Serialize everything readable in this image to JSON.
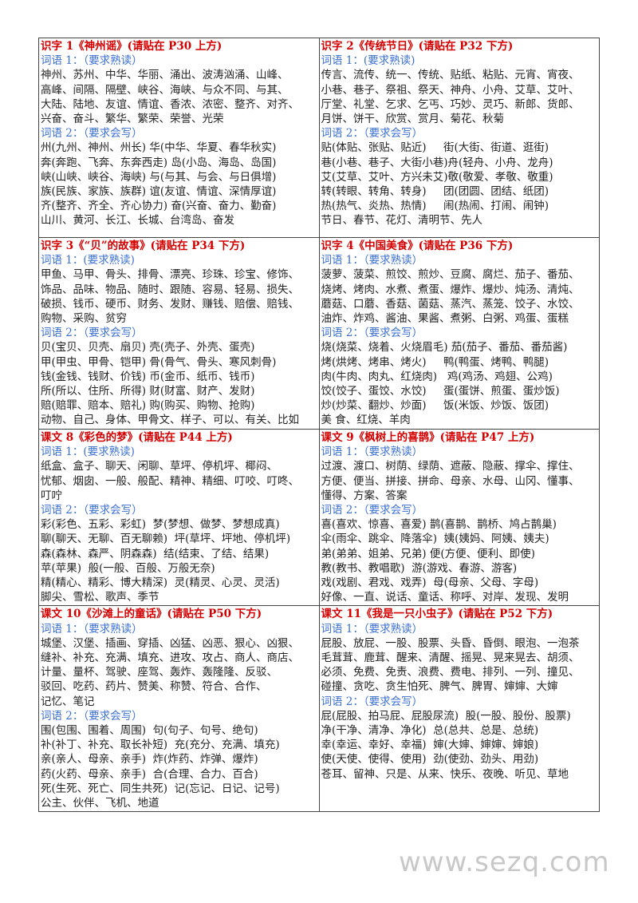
{
  "cells": [
    {
      "title": "识字 1《神州谣》(请贴在 P30 上方)",
      "vocab1_label": "词语 1：（要求熟读）",
      "vocab1_lines": [
        "神州、苏州、中华、华丽、涌出、波涛汹涌、山峰、",
        "高峰、间隔、隔壁、峡谷、海峡、与众不同、与其、",
        "大陆、陆地、友谊、情谊、香浓、浓密、整齐、对齐、",
        "兴奋、奋斗、繁华、繁荣、荣誉、光荣"
      ],
      "vocab2_label": "词语 2：（要求会写）",
      "vocab2_lines": [
        "州(九州、神州、州长) 华(中华、华夏、春华秋实)",
        "奔(奔跑、飞奔、东奔西走) 岛(小岛、海岛、岛国)",
        "峡(山峡、峡谷、海峡) 与(与其、与会、与日俱增)",
        "族(民族、家族、族群) 谊(友谊、情谊、深情厚谊)",
        "齐(整齐、齐全、齐心协力) 奋(兴奋、奋力、勤奋)",
        "山川、黄河、长江、长城、台湾岛、奋发"
      ]
    },
    {
      "title": "识字 2《传统节日》(请贴在 P32 下方)",
      "vocab1_label": "词语 1：(要求熟读)",
      "vocab1_lines": [
        "传言、流传、统一、传统、贴纸、粘贴、元宵、宵夜、",
        "小巷、巷子、祭祖、祭天、神舟、小舟、艾草、艾叶、",
        "厅堂、礼堂、乞求、乞丐、巧妙、灵巧、新郎、货郎、",
        "月饼、饼干、欣赏、赏月、菊花、秋菊"
      ],
      "vocab2_label": "词语 2：（要求会写）",
      "vocab2_lines": [
        "贴(体贴、张贴、贴近)     街(大街、街道、逛街)",
        "巷(小巷、巷子、大街小巷)舟(轻舟、小舟、龙舟)",
        "艾(艾草、艾叶、方兴未艾)敬(敬爱、孝敬、敬重)",
        "转(转眼、转角、转身)     团(团圆、团结、纸团)",
        "热(热气、炎热、热情)     闹(热闹、打闹、闹钟)",
        "节日、春节、花灯、清明节、先人"
      ]
    },
    {
      "title": "识字 3《“贝”的故事》(请贴在 P34 下方)",
      "vocab1_label": "词语 1：(要求熟读)",
      "vocab1_lines": [
        "甲鱼、马甲、骨头、排骨、漂亮、珍珠、珍宝、修饰、",
        "饰品、品味、物品、随时、跟随、容易、轻易、损失、",
        "破损、钱币、硬币、财务、发财、赚钱、赔偿、赔钱、",
        "购物、采购、贫穷"
      ],
      "vocab2_label": "词语 2：（要求会写）",
      "vocab2_lines": [
        "贝(宝贝、贝壳、扇贝) 壳(壳子、外壳、蛋壳)",
        "甲(甲虫、甲骨、铠甲) 骨(骨气、骨头、寒风刺骨)",
        "钱(金钱、钱财、价钱) 币(金币、纸币、钱币)",
        "所(所以、住所、所得) 财(财富、财产、发财)",
        "赔(赔罪、赔本、赔礼) 购(购买、购物、抢购)",
        "动物、自己、身体、甲骨文、样子、可以、有关、比如"
      ]
    },
    {
      "title": "识字 4《中国美食》(请贴在 P36 下方)",
      "vocab1_label": "词语 1：（要求熟读）",
      "vocab1_lines": [
        "菠萝、菠菜、煎饺、煎炒、豆腐、腐烂、茄子、番茄、",
        "烧烤、烤肉、水煮、煮蛋、爆炸、爆炒、炖汤、清炖、",
        "蘑菇、口蘑、香菇、菌菇、蒸汽、蒸笼、饺子、水饺、",
        "油炸、炸鸡、酱油、果酱、煮粥、白粥、鸡蛋、蛋糕"
      ],
      "vocab2_label": "词语 2：（要求会写）",
      "vocab2_lines": [
        "烧(烧菜、烧着、火烧眉毛) 茄(茄子、番茄、番茄酱)",
        "烤(烘烤、烤串、烤火)     鸭(鸭蛋、烤鸭、鸭腿)",
        "肉(牛肉、肉丸、红烧肉)   鸡(鸡汤、鸡翅、公鸡)",
        "饺(饺子、蛋饺、水饺)     蛋(蛋饼、煎蛋、蛋炒饭)",
        "炒(炒菜、翻炒、炒面)     饭(米饭、炒饭、饭团)",
        "美 食、红烧、羊肉"
      ]
    },
    {
      "title": "课文 8《彩色的梦》(请贴在 P44 上方)",
      "vocab1_label": "词语 1：(要求熟读)",
      "vocab1_lines": [
        "纸盒、盒子、聊天、闲聊、草坪、停机坪、椰闷、",
        "忧郁、烟囱、一般、般配、精神、精细、叮咬、叮咚、",
        "叮咛"
      ],
      "vocab2_label": "词语 2：（要求会写）",
      "vocab2_lines": [
        "彩(彩色、五彩、彩虹)  梦(梦想、做梦、梦想成真)",
        "聊(聊天、无聊、百无聊赖)  坪(草坪、坪地、停机坪)",
        "森(森林、森严、阴森森)  结(结束、了结、结果)",
        "苹(苹果)  般(一般、百般、万般无奈)",
        "精(精心、精彩、博大精深)  灵(精灵、心灵、灵活)",
        "脚尖、雪松、歌声、季节"
      ]
    },
    {
      "title": "课文 9《枫树上的喜鹊》(请贴在 P47 上方)",
      "vocab1_label": "词语 1：（要求熟读）",
      "vocab1_lines": [
        "过渡、渡口、树荫、绿荫、遮蔽、隐蔽、撑伞、撑住、",
        "方便、便当、拼接、拼命、母亲、水母、山冈、懂事、",
        "懂得、方案、答案"
      ],
      "vocab2_label": "词语 2：（要求会写）",
      "vocab2_lines": [
        "喜(喜欢、惊喜、喜爱) 鹊(喜鹊、鹊桥、鸠占鹊巢)",
        "伞(雨伞、跳伞、降落伞)  姨(姨妈、阿姨、姨夫)",
        "弟(弟弟、姐弟、兄弟) 便(方便、便利、即使)",
        "教(教书、教唱歌)  游(游戏、春游、游客)",
        "戏(戏剧、君戏、戏弄)  母(母亲、父母、字母)",
        "好像、一直、说话、童话、称呼、对岸、发现、发明"
      ]
    },
    {
      "title": "课文 10《沙滩上的童话》(请贴在 P50 下方)",
      "vocab1_label": "词语 1：（要求熟读）",
      "vocab1_lines": [
        "城堡、汉堡、插画、穿插、凶猛、凶恶、狠心、凶狠、",
        "缝补、补充、充满、填充、进攻、攻占、商人、商店、",
        "计量、量杯、驾驶、座驾、轰炸、轰隆隆、反驳、",
        "驳回、吃药、药片、赞美、称赞、符合、合作、",
        "记忆、笔记"
      ],
      "vocab2_label": "词语 2：（要求会写）",
      "vocab2_lines": [
        "围(包围、围着、周围)  句(句子、句号、绝句)",
        "补(补丁、补充、取长补短)  充(充分、充满、填充)",
        "亲(亲人、母亲、亲手)  炸(炸药、炸弹、爆炸)",
        "药(火药、母亲、亲手)  合(合理、合力、百合)",
        "死(生死、死亡、同生共死)  记(忘记、日记、记号)",
        "公主、伙伴、飞机、地道"
      ]
    },
    {
      "title": "课文 11《我是一只小虫子》(请贴在 P52 下方)",
      "vocab1_label": "词语 1：（要求熟读）",
      "vocab1_lines": [
        "屁股、放屁、一股、股票、头昏、昏倒、眼泡、一泡茶",
        "毛茸茸、鹿茸、醒来、清醒、摇晃、晃来晃去、胡须、",
        "必须、免费、免责、浪费、费电、排列、一列、撞见、",
        "碰撞、贪吃、贪生怕死、脾气、脾胃、婶婶、大婶"
      ],
      "vocab2_label": "词语 2：（要求会写）",
      "vocab2_lines": [
        "屁(屁股、拍马屁、屁股尿流)  股(一股、股份、股票)",
        "净(干净、清净、净化)  总(总共、总是、总统)",
        "幸(幸运、幸好、幸福)  婶(大婶、婶婶、婶娘)",
        "使(天使、使得、使用)  劲(使劲、劲头、用劲)",
        "苍耳、留神、只是、从来、快乐、夜晚、听见、草地"
      ]
    }
  ],
  "watermark": "www.sezq.com",
  "colors": {
    "title": "#d40000",
    "label": "#3a6fd0",
    "text": "#222222",
    "border": "#444444"
  }
}
